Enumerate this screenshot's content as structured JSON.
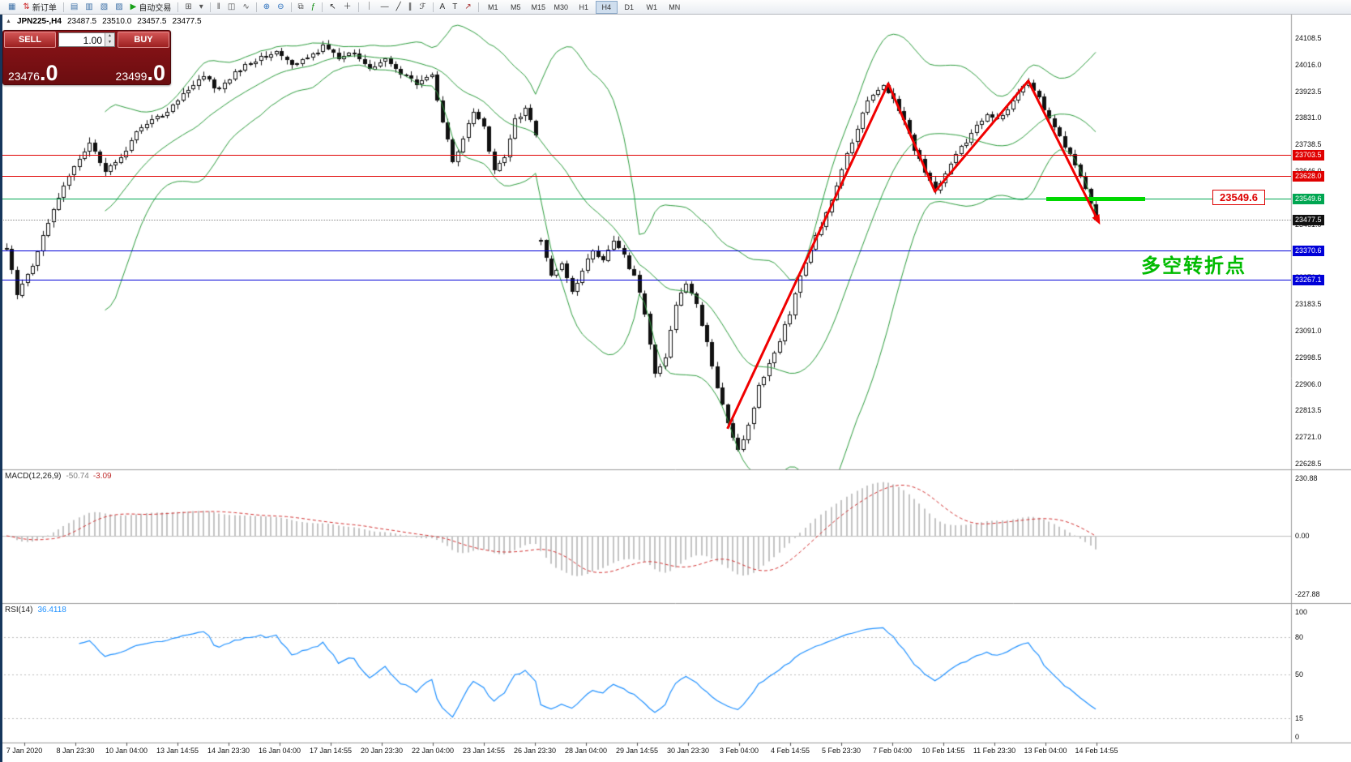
{
  "toolbar": {
    "items": [
      {
        "name": "charts-window-icon",
        "glyph": "▦",
        "color": "#3a6ea5"
      },
      {
        "name": "new-order-button",
        "glyph": "⇅",
        "color": "#cc2222",
        "label": "新订单"
      },
      {
        "sep": true
      },
      {
        "name": "market-watch-icon",
        "glyph": "▤",
        "color": "#3a6ea5"
      },
      {
        "name": "data-window-icon",
        "glyph": "▥",
        "color": "#3a6ea5"
      },
      {
        "name": "navigator-icon",
        "glyph": "▧",
        "color": "#3a6ea5"
      },
      {
        "name": "terminal-icon",
        "glyph": "▨",
        "color": "#3a6ea5"
      },
      {
        "name": "auto-trading-button",
        "glyph": "▶",
        "color": "#18a018",
        "label": "自动交易"
      },
      {
        "sep": true
      },
      {
        "name": "new-chart-icon",
        "glyph": "⊞",
        "color": "#555555"
      },
      {
        "name": "profiles-icon",
        "glyph": "▾",
        "color": "#555555"
      },
      {
        "sep": true
      },
      {
        "name": "bar-chart-icon",
        "glyph": "‖",
        "color": "#555555"
      },
      {
        "name": "candlestick-chart-icon",
        "glyph": "◫",
        "color": "#555555"
      },
      {
        "name": "line-chart-icon",
        "glyph": "∿",
        "color": "#555555"
      },
      {
        "sep": true
      },
      {
        "name": "zoom-in-icon",
        "glyph": "⊕",
        "color": "#2a6fbd"
      },
      {
        "name": "zoom-out-icon",
        "glyph": "⊖",
        "color": "#2a6fbd"
      },
      {
        "sep": true
      },
      {
        "name": "tile-windows-icon",
        "glyph": "⧉",
        "color": "#555555"
      },
      {
        "name": "indicators-icon",
        "glyph": "ƒ",
        "color": "#0a8a0a"
      },
      {
        "sep": true
      },
      {
        "name": "cursor-icon",
        "glyph": "↖",
        "color": "#333333"
      },
      {
        "name": "crosshair-icon",
        "glyph": "＋",
        "color": "#333333"
      },
      {
        "sep": true
      },
      {
        "name": "vertical-line-icon",
        "glyph": "｜",
        "color": "#333333"
      },
      {
        "name": "horizontal-line-icon",
        "glyph": "—",
        "color": "#333333"
      },
      {
        "name": "trendline-icon",
        "glyph": "╱",
        "color": "#333333"
      },
      {
        "name": "channel-icon",
        "glyph": "∥",
        "color": "#333333"
      },
      {
        "name": "fibonacci-icon",
        "glyph": "ℱ",
        "color": "#333333"
      },
      {
        "sep": true
      },
      {
        "name": "text-icon",
        "glyph": "A",
        "color": "#333333"
      },
      {
        "name": "text-label-icon",
        "glyph": "T",
        "color": "#333333"
      },
      {
        "name": "arrows-icon",
        "glyph": "↗",
        "color": "#aa3333"
      },
      {
        "sep": true
      }
    ],
    "timeframes": [
      {
        "label": "M1"
      },
      {
        "label": "M5"
      },
      {
        "label": "M15"
      },
      {
        "label": "M30"
      },
      {
        "label": "H1"
      },
      {
        "label": "H4",
        "active": true
      },
      {
        "label": "D1"
      },
      {
        "label": "W1"
      },
      {
        "label": "MN"
      }
    ]
  },
  "quote": {
    "marker": "▲",
    "symbol": "JPN225-,H4",
    "open": "23487.5",
    "high": "23510.0",
    "low": "23457.5",
    "close": "23477.5"
  },
  "trade_panel": {
    "sell_label": "SELL",
    "buy_label": "BUY",
    "volume": "1.00",
    "vol_up_icon": "▲",
    "vol_down_icon": "▼",
    "sell_price_main": "23476",
    "sell_price_big": ".0",
    "buy_price_main": "23499",
    "buy_price_big": ".0"
  },
  "chart_data": {
    "type": "candlestick",
    "symbol": "JPN225-",
    "timeframe": "H4",
    "bars_total": 211,
    "price_axis": {
      "ticks": [
        "24108.5",
        "24016.0",
        "23923.5",
        "23831.0",
        "23738.5",
        "23646.0",
        "23553.5",
        "23461.0",
        "23368.5",
        "23276.0",
        "23183.5",
        "23091.0",
        "22998.5",
        "22906.0",
        "22813.5",
        "22721.0",
        "22628.5"
      ]
    },
    "time_axis": {
      "labels": [
        "7 Jan 2020",
        "8 Jan 23:30",
        "10 Jan 04:00",
        "13 Jan 14:55",
        "14 Jan 23:30",
        "16 Jan 04:00",
        "17 Jan 14:55",
        "20 Jan 23:30",
        "22 Jan 04:00",
        "23 Jan 14:55",
        "26 Jan 23:30",
        "28 Jan 04:00",
        "29 Jan 14:55",
        "30 Jan 23:30",
        "3 Feb 04:00",
        "4 Feb 14:55",
        "5 Feb 23:30",
        "7 Feb 04:00",
        "10 Feb 14:55",
        "11 Feb 23:30",
        "13 Feb 04:00",
        "14 Feb 14:55"
      ]
    },
    "price_waypoints": [
      [
        0,
        23380
      ],
      [
        2,
        23220
      ],
      [
        5,
        23320
      ],
      [
        9,
        23520
      ],
      [
        13,
        23660
      ],
      [
        16,
        23740
      ],
      [
        19,
        23640
      ],
      [
        22,
        23700
      ],
      [
        26,
        23800
      ],
      [
        30,
        23840
      ],
      [
        34,
        23920
      ],
      [
        38,
        23970
      ],
      [
        41,
        23930
      ],
      [
        44,
        23990
      ],
      [
        48,
        24030
      ],
      [
        52,
        24060
      ],
      [
        55,
        24010
      ],
      [
        58,
        24040
      ],
      [
        61,
        24080
      ],
      [
        64,
        24040
      ],
      [
        67,
        24060
      ],
      [
        70,
        24000
      ],
      [
        73,
        24030
      ],
      [
        76,
        23980
      ],
      [
        79,
        23950
      ],
      [
        82,
        23980
      ],
      [
        84,
        23820
      ],
      [
        86,
        23680
      ],
      [
        88,
        23760
      ],
      [
        90,
        23850
      ],
      [
        92,
        23800
      ],
      [
        94,
        23640
      ],
      [
        96,
        23700
      ],
      [
        98,
        23820
      ],
      [
        100,
        23860
      ],
      [
        102,
        23780
      ],
      [
        103,
        23400
      ],
      [
        105,
        23280
      ],
      [
        107,
        23320
      ],
      [
        109,
        23220
      ],
      [
        111,
        23300
      ],
      [
        113,
        23380
      ],
      [
        115,
        23330
      ],
      [
        117,
        23400
      ],
      [
        119,
        23350
      ],
      [
        121,
        23280
      ],
      [
        123,
        23150
      ],
      [
        125,
        22950
      ],
      [
        127,
        23000
      ],
      [
        129,
        23180
      ],
      [
        131,
        23250
      ],
      [
        133,
        23180
      ],
      [
        135,
        23050
      ],
      [
        137,
        22900
      ],
      [
        139,
        22760
      ],
      [
        141,
        22680
      ],
      [
        143,
        22760
      ],
      [
        145,
        22900
      ],
      [
        147,
        22980
      ],
      [
        149,
        23060
      ],
      [
        151,
        23150
      ],
      [
        153,
        23280
      ],
      [
        155,
        23380
      ],
      [
        157,
        23450
      ],
      [
        159,
        23550
      ],
      [
        161,
        23650
      ],
      [
        163,
        23750
      ],
      [
        165,
        23850
      ],
      [
        167,
        23920
      ],
      [
        169,
        23950
      ],
      [
        171,
        23900
      ],
      [
        173,
        23820
      ],
      [
        175,
        23720
      ],
      [
        177,
        23640
      ],
      [
        179,
        23575
      ],
      [
        181,
        23640
      ],
      [
        183,
        23700
      ],
      [
        185,
        23750
      ],
      [
        187,
        23800
      ],
      [
        189,
        23850
      ],
      [
        191,
        23820
      ],
      [
        193,
        23870
      ],
      [
        195,
        23920
      ],
      [
        197,
        23950
      ],
      [
        199,
        23900
      ],
      [
        201,
        23830
      ],
      [
        203,
        23760
      ],
      [
        205,
        23700
      ],
      [
        207,
        23620
      ],
      [
        208,
        23590
      ],
      [
        209,
        23540
      ],
      [
        210,
        23480
      ]
    ],
    "hlines": [
      {
        "value": 23703.5,
        "label": "23703.5",
        "color": "#e00000",
        "kind": "resistance"
      },
      {
        "value": 23628.0,
        "label": "23628.0",
        "color": "#e00000",
        "kind": "resistance"
      },
      {
        "value": 23549.6,
        "label": "23549.6",
        "color": "#00a651",
        "kind": "pivot"
      },
      {
        "value": 23370.6,
        "label": "23370.6",
        "color": "#0000d8",
        "kind": "support"
      },
      {
        "value": 23267.1,
        "label": "23267.1",
        "color": "#0000d8",
        "kind": "support"
      }
    ],
    "current_price": {
      "value": 23477.5,
      "label": "23477.5"
    },
    "zigzag": {
      "color": "#f00000",
      "points": [
        [
          139,
          22750
        ],
        [
          170,
          23950
        ],
        [
          179,
          23575
        ],
        [
          197,
          23960
        ],
        [
          210,
          23490
        ]
      ]
    },
    "support_bar": {
      "from_bar": 200.5,
      "to_bar": 219.5,
      "value": 23549.6,
      "color": "#00d800"
    },
    "annotations": {
      "price_callout": "23549.6",
      "note": "多空转折点"
    },
    "indicators": {
      "bollinger": {
        "period": 20,
        "deviation": 2,
        "color": "#2f9e3f"
      },
      "macd": {
        "label": "MACD(12,26,9)",
        "value_main": "-50.74",
        "value_signal": "-3.09",
        "axis": [
          "230.88",
          "0.00",
          "-227.88"
        ]
      },
      "rsi": {
        "label": "RSI(14)",
        "value": "36.4118",
        "axis": [
          "100",
          "80",
          "50",
          "15",
          "0"
        ],
        "levels": [
          80,
          50,
          15
        ],
        "color": "#1e90ff"
      }
    }
  }
}
